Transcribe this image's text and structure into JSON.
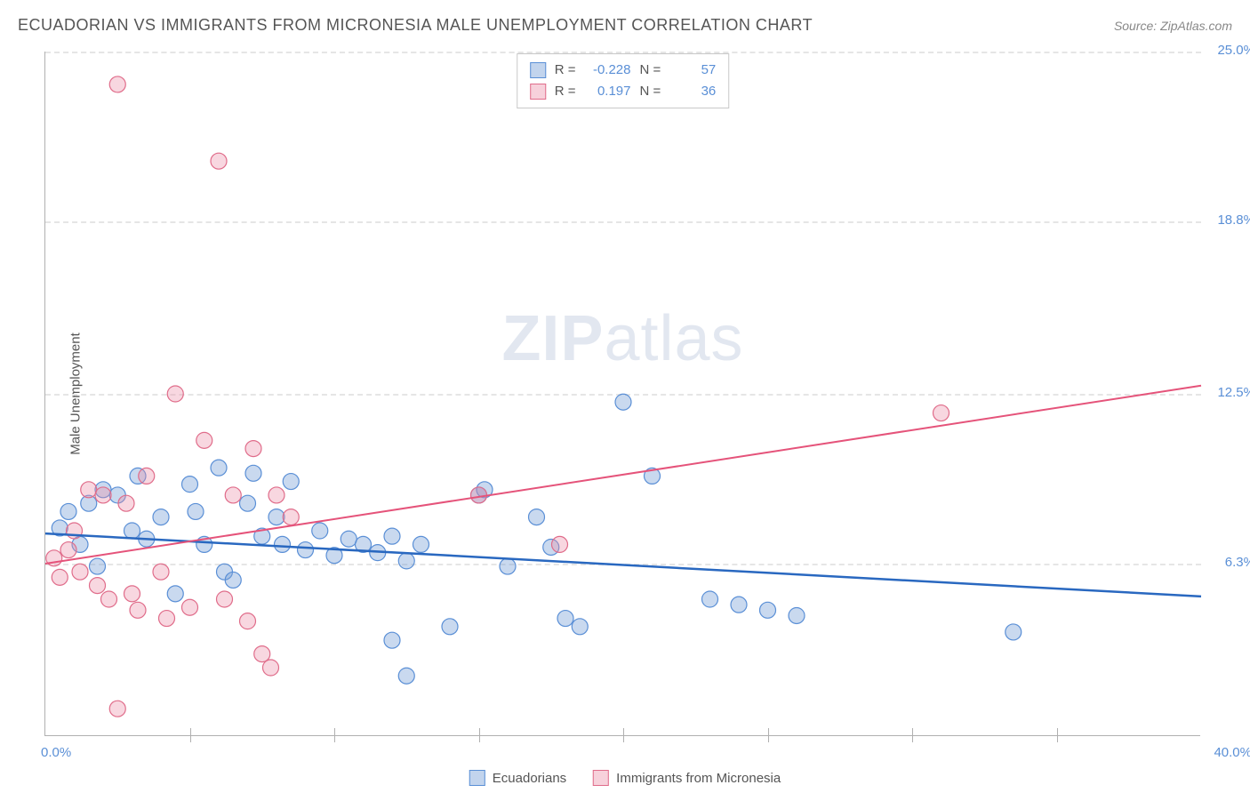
{
  "title": "ECUADORIAN VS IMMIGRANTS FROM MICRONESIA MALE UNEMPLOYMENT CORRELATION CHART",
  "source": "Source: ZipAtlas.com",
  "watermark_left": "ZIP",
  "watermark_right": "atlas",
  "chart": {
    "type": "scatter",
    "xlim": [
      0,
      40
    ],
    "ylim": [
      0,
      25
    ],
    "x_label_start": "0.0%",
    "x_label_end": "40.0%",
    "y_axis_label": "Male Unemployment",
    "y_ticks": [
      6.3,
      12.5,
      18.8,
      25.0
    ],
    "y_tick_labels": [
      "6.3%",
      "12.5%",
      "18.8%",
      "25.0%"
    ],
    "x_tick_positions": [
      5,
      10,
      15,
      20,
      25,
      30,
      35
    ],
    "gridline_color": "#e5e5e5",
    "axis_color": "#b0b0b0",
    "background_color": "#ffffff",
    "marker_radius": 9,
    "series": [
      {
        "name": "Ecuadorians",
        "swatch_class": "blue",
        "marker_class": "marker-blue",
        "trend_class": "trend-blue",
        "R": "-0.228",
        "N": "57",
        "trend": {
          "x1": 0,
          "y1": 7.4,
          "x2": 40,
          "y2": 5.1
        },
        "points": [
          [
            0.5,
            7.6
          ],
          [
            0.8,
            8.2
          ],
          [
            1.2,
            7.0
          ],
          [
            1.5,
            8.5
          ],
          [
            1.8,
            6.2
          ],
          [
            2.0,
            9.0
          ],
          [
            2.5,
            8.8
          ],
          [
            3.0,
            7.5
          ],
          [
            3.2,
            9.5
          ],
          [
            3.5,
            7.2
          ],
          [
            4.0,
            8.0
          ],
          [
            4.5,
            5.2
          ],
          [
            5.0,
            9.2
          ],
          [
            5.2,
            8.2
          ],
          [
            5.5,
            7.0
          ],
          [
            6.0,
            9.8
          ],
          [
            6.2,
            6.0
          ],
          [
            6.5,
            5.7
          ],
          [
            7.0,
            8.5
          ],
          [
            7.2,
            9.6
          ],
          [
            7.5,
            7.3
          ],
          [
            8.0,
            8.0
          ],
          [
            8.2,
            7.0
          ],
          [
            8.5,
            9.3
          ],
          [
            9.0,
            6.8
          ],
          [
            9.5,
            7.5
          ],
          [
            10.0,
            6.6
          ],
          [
            10.5,
            7.2
          ],
          [
            11.0,
            7.0
          ],
          [
            11.5,
            6.7
          ],
          [
            12.0,
            7.3
          ],
          [
            12.0,
            3.5
          ],
          [
            12.5,
            6.4
          ],
          [
            13.0,
            7.0
          ],
          [
            12.5,
            2.2
          ],
          [
            14.0,
            4.0
          ],
          [
            15.0,
            8.8
          ],
          [
            15.2,
            9.0
          ],
          [
            16.0,
            6.2
          ],
          [
            17.0,
            8.0
          ],
          [
            17.5,
            6.9
          ],
          [
            18.0,
            4.3
          ],
          [
            18.5,
            4.0
          ],
          [
            20.0,
            12.2
          ],
          [
            21.0,
            9.5
          ],
          [
            23.0,
            5.0
          ],
          [
            24.0,
            4.8
          ],
          [
            25.0,
            4.6
          ],
          [
            26.0,
            4.4
          ],
          [
            33.5,
            3.8
          ]
        ]
      },
      {
        "name": "Immigrants from Micronesia",
        "swatch_class": "pink",
        "marker_class": "marker-pink",
        "trend_class": "trend-pink",
        "R": "0.197",
        "N": "36",
        "trend": {
          "x1": 0,
          "y1": 6.3,
          "x2": 40,
          "y2": 12.8
        },
        "points": [
          [
            0.3,
            6.5
          ],
          [
            0.5,
            5.8
          ],
          [
            0.8,
            6.8
          ],
          [
            1.0,
            7.5
          ],
          [
            1.2,
            6.0
          ],
          [
            1.5,
            9.0
          ],
          [
            1.8,
            5.5
          ],
          [
            2.0,
            8.8
          ],
          [
            2.2,
            5.0
          ],
          [
            2.5,
            23.8
          ],
          [
            2.8,
            8.5
          ],
          [
            3.0,
            5.2
          ],
          [
            3.2,
            4.6
          ],
          [
            3.5,
            9.5
          ],
          [
            4.0,
            6.0
          ],
          [
            4.2,
            4.3
          ],
          [
            4.5,
            12.5
          ],
          [
            5.0,
            4.7
          ],
          [
            5.5,
            10.8
          ],
          [
            6.0,
            21.0
          ],
          [
            6.2,
            5.0
          ],
          [
            6.5,
            8.8
          ],
          [
            7.0,
            4.2
          ],
          [
            7.2,
            10.5
          ],
          [
            7.5,
            3.0
          ],
          [
            8.0,
            8.8
          ],
          [
            8.5,
            8.0
          ],
          [
            2.5,
            1.0
          ],
          [
            7.8,
            2.5
          ],
          [
            15.0,
            8.8
          ],
          [
            17.8,
            7.0
          ],
          [
            31.0,
            11.8
          ]
        ]
      }
    ]
  },
  "stats_legend": {
    "R_label": "R =",
    "N_label": "N ="
  },
  "bottom_legend": [
    {
      "label": "Ecuadorians",
      "swatch": "blue"
    },
    {
      "label": "Immigrants from Micronesia",
      "swatch": "pink"
    }
  ],
  "colors": {
    "blue_fill": "rgba(120,160,215,0.45)",
    "blue_stroke": "#5a8fd6",
    "pink_fill": "rgba(235,140,165,0.4)",
    "pink_stroke": "#e06c8a",
    "trend_blue": "#2968c0",
    "trend_pink": "#e5537a",
    "tick_label": "#5a8fd6"
  }
}
